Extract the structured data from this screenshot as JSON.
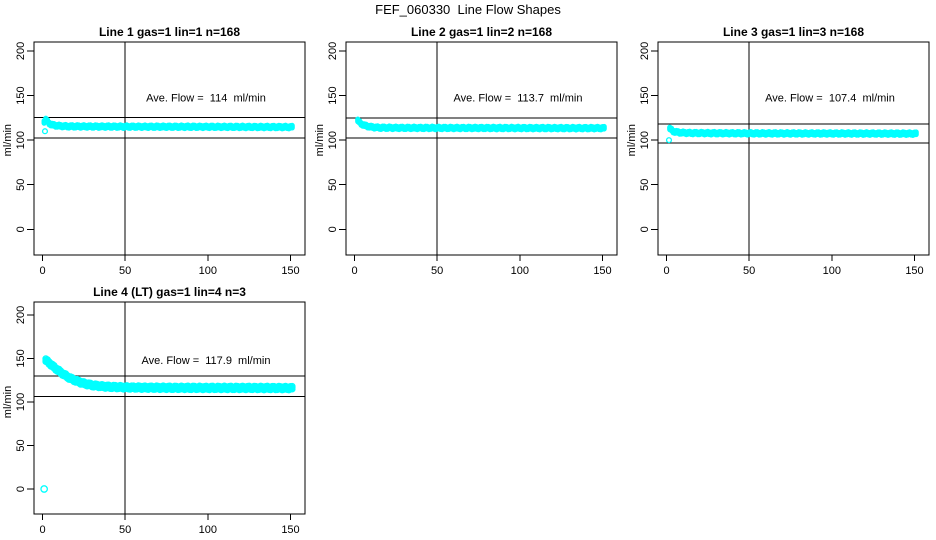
{
  "figure": {
    "title": "FEF_060330  Line Flow Shapes",
    "background": "#ffffff",
    "axis_color": "#000000",
    "point_color": "#00ffff"
  },
  "chart_data": [
    {
      "type": "scatter",
      "title": "Line 1 gas=1 lin=1 n=168",
      "ave_flow_label": "Ave. Flow =  114  ml/min",
      "ave_flow_ml_min": 114,
      "n": 168,
      "ylabel": "ml/min",
      "x_ticks": [
        0,
        50,
        100,
        150
      ],
      "y_ticks": [
        0,
        50,
        100,
        150,
        200
      ],
      "xlim": [
        0,
        155
      ],
      "ylim": [
        0,
        215
      ],
      "grid": false,
      "ref_line_upper": 125.4,
      "ref_line_lower": 102.6,
      "vline_x": 50,
      "keypoints": [
        [
          1,
          121
        ],
        [
          2,
          123
        ],
        [
          3,
          121
        ],
        [
          4,
          119
        ],
        [
          6,
          117
        ],
        [
          10,
          116
        ],
        [
          15,
          115.5
        ],
        [
          30,
          115.3
        ],
        [
          60,
          115.1
        ],
        [
          100,
          115.0
        ],
        [
          130,
          114.8
        ],
        [
          151,
          114.7
        ]
      ],
      "lead_points": [
        [
          1.5,
          110
        ]
      ],
      "outlier_points": [],
      "marker_radius": 2.0,
      "band_half_width": 1.2
    },
    {
      "type": "scatter",
      "title": "Line 2 gas=1 lin=2 n=168",
      "ave_flow_label": "Ave. Flow =  113.7  ml/min",
      "ave_flow_ml_min": 113.7,
      "n": 168,
      "ylabel": "ml/min",
      "x_ticks": [
        0,
        50,
        100,
        150
      ],
      "y_ticks": [
        0,
        50,
        100,
        150,
        200
      ],
      "xlim": [
        0,
        155
      ],
      "ylim": [
        0,
        215
      ],
      "grid": false,
      "ref_line_upper": 125.1,
      "ref_line_lower": 102.3,
      "vline_x": 50,
      "keypoints": [
        [
          2,
          122
        ],
        [
          3,
          120
        ],
        [
          4,
          118.5
        ],
        [
          6,
          116.5
        ],
        [
          10,
          114.8
        ],
        [
          15,
          114.0
        ],
        [
          30,
          113.8
        ],
        [
          60,
          113.7
        ],
        [
          100,
          113.6
        ],
        [
          130,
          113.5
        ],
        [
          151,
          113.5
        ]
      ],
      "lead_points": [],
      "outlier_points": [],
      "marker_radius": 2.0,
      "band_half_width": 1.2
    },
    {
      "type": "scatter",
      "title": "Line 3 gas=1 lin=3 n=168",
      "ave_flow_label": "Ave. Flow =  107.4  ml/min",
      "ave_flow_ml_min": 107.4,
      "n": 168,
      "ylabel": "ml/min",
      "x_ticks": [
        0,
        50,
        100,
        150
      ],
      "y_ticks": [
        0,
        50,
        100,
        150,
        200
      ],
      "xlim": [
        0,
        155
      ],
      "ylim": [
        0,
        215
      ],
      "grid": false,
      "ref_line_upper": 118.1,
      "ref_line_lower": 96.7,
      "vline_x": 50,
      "keypoints": [
        [
          2,
          113
        ],
        [
          3,
          111.5
        ],
        [
          4,
          110
        ],
        [
          6,
          109
        ],
        [
          10,
          108.3
        ],
        [
          15,
          108.0
        ],
        [
          30,
          107.8
        ],
        [
          60,
          107.6
        ],
        [
          100,
          107.5
        ],
        [
          130,
          107.4
        ],
        [
          151,
          107.3
        ]
      ],
      "lead_points": [
        [
          1.5,
          100
        ]
      ],
      "outlier_points": [],
      "marker_radius": 2.0,
      "band_half_width": 1.2
    },
    {
      "type": "scatter",
      "title": "Line 4 (LT) gas=1 lin=4 n=3",
      "ave_flow_label": "Ave. Flow =  117.9  ml/min",
      "ave_flow_ml_min": 117.9,
      "n": 3,
      "ylabel": "ml/min",
      "x_ticks": [
        0,
        50,
        100,
        150
      ],
      "y_ticks": [
        0,
        50,
        100,
        150,
        200
      ],
      "xlim": [
        0,
        155
      ],
      "ylim": [
        0,
        215
      ],
      "grid": false,
      "ref_line_upper": 129.7,
      "ref_line_lower": 106.1,
      "vline_x": 50,
      "keypoints": [
        [
          2,
          148
        ],
        [
          3,
          146.5
        ],
        [
          4,
          145
        ],
        [
          5,
          143.3
        ],
        [
          6,
          141.5
        ],
        [
          8,
          138.5
        ],
        [
          10,
          135.5
        ],
        [
          13,
          131.5
        ],
        [
          16,
          128
        ],
        [
          20,
          124.5
        ],
        [
          25,
          121.3
        ],
        [
          30,
          119.3
        ],
        [
          35,
          118.2
        ],
        [
          40,
          117.5
        ],
        [
          50,
          116.8
        ],
        [
          60,
          116.5
        ],
        [
          80,
          116.3
        ],
        [
          100,
          116.2
        ],
        [
          120,
          116.2
        ],
        [
          151,
          116.0
        ]
      ],
      "lead_points": [],
      "outlier_points": [
        [
          1,
          0
        ]
      ],
      "marker_radius": 2.8,
      "band_half_width": 1.4
    }
  ]
}
